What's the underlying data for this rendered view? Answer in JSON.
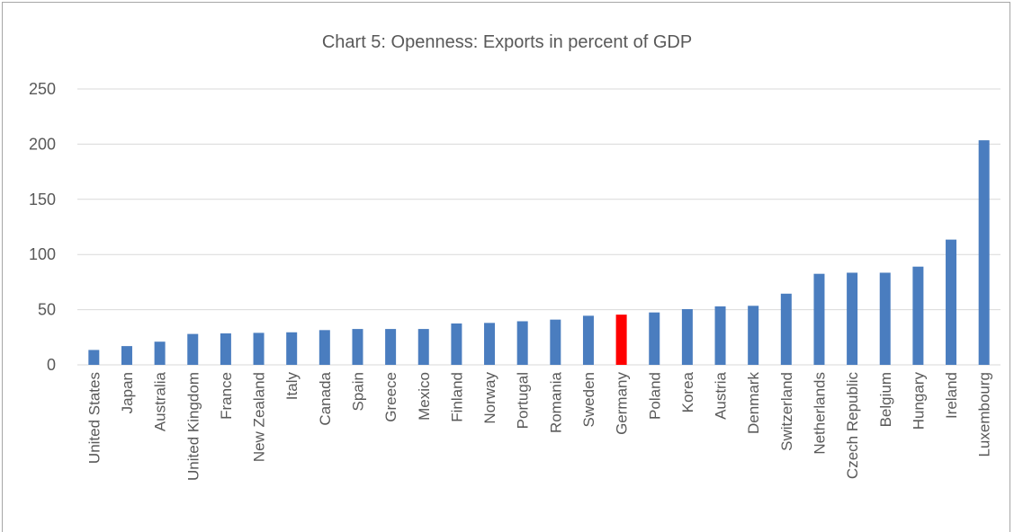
{
  "chart_data": {
    "type": "bar",
    "title": "Chart 5: Openness: Exports in percent of GDP",
    "xlabel": "",
    "ylabel": "",
    "ylim": [
      0,
      250
    ],
    "yticks": [
      0,
      50,
      100,
      150,
      200,
      250
    ],
    "grid": true,
    "legend": "none",
    "categories": [
      "United States",
      "Japan",
      "Australia",
      "United Kingdom",
      "France",
      "New Zealand",
      "Italy",
      "Canada",
      "Spain",
      "Greece",
      "Mexico",
      "Finland",
      "Norway",
      "Portugal",
      "Romania",
      "Sweden",
      "Germany",
      "Poland",
      "Korea",
      "Austria",
      "Denmark",
      "Switzerland",
      "Netherlands",
      "Czech Republic",
      "Belgium",
      "Hungary",
      "Ireland",
      "Luxembourg"
    ],
    "values": [
      13.5,
      17,
      21,
      28,
      28.5,
      29,
      29.5,
      31.5,
      32.5,
      32.5,
      32.5,
      37.5,
      38,
      39.5,
      41,
      44.5,
      45.5,
      47.5,
      50.5,
      53,
      53.5,
      64.5,
      82.5,
      83.5,
      83.5,
      89,
      113.5,
      203.5
    ],
    "highlight": "Germany",
    "colors": {
      "bar": "#4a7dbf",
      "highlight": "#ff0000",
      "grid": "#d9d9d9",
      "text": "#595959"
    }
  }
}
